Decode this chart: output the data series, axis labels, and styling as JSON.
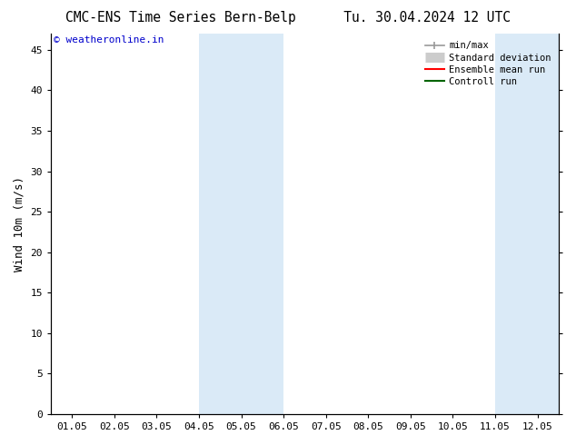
{
  "title": "CMC-ENS Time Series Bern-Belp",
  "title2": "Tu. 30.04.2024 12 UTC",
  "ylabel": "Wind 10m (m/s)",
  "watermark": "© weatheronline.in",
  "ylim": [
    0,
    47
  ],
  "yticks": [
    0,
    5,
    10,
    15,
    20,
    25,
    30,
    35,
    40,
    45
  ],
  "xtick_labels": [
    "01.05",
    "02.05",
    "03.05",
    "04.05",
    "05.05",
    "06.05",
    "07.05",
    "08.05",
    "09.05",
    "10.05",
    "11.05",
    "12.05"
  ],
  "num_xticks": 12,
  "shaded_bands": [
    {
      "xstart": 3,
      "xend": 5
    },
    {
      "xstart": 10,
      "xend": 12
    }
  ],
  "band_color": "#daeaf7",
  "background_color": "#ffffff",
  "plot_bg_color": "#ffffff",
  "legend_entries": [
    {
      "label": "min/max",
      "color": "#999999",
      "lw": 1.2
    },
    {
      "label": "Standard deviation",
      "color": "#cccccc",
      "lw": 8
    },
    {
      "label": "Ensemble mean run",
      "color": "#ff0000",
      "lw": 1.5
    },
    {
      "label": "Controll run",
      "color": "#006400",
      "lw": 1.5
    }
  ],
  "title_fontsize": 10.5,
  "tick_fontsize": 8,
  "ylabel_fontsize": 9,
  "watermark_color": "#0000cc",
  "watermark_fontsize": 8,
  "spine_color": "#000000",
  "right_ticks": true
}
